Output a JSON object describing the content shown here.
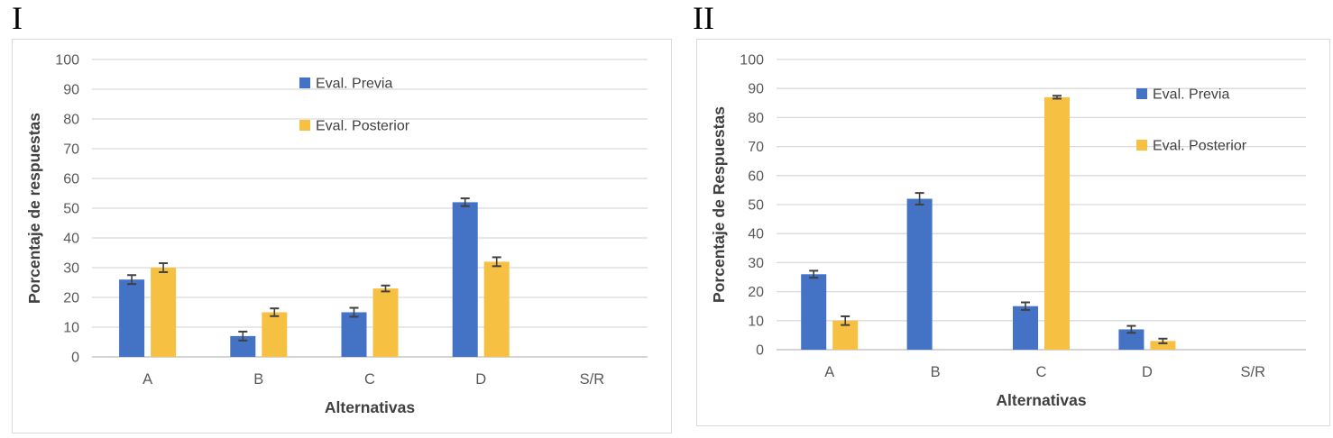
{
  "figures": [
    {
      "label": "I"
    },
    {
      "label": "II"
    }
  ],
  "colors": {
    "series_previa": "#4472C4",
    "series_posterior": "#F6C143",
    "gridline": "#D9D9D9",
    "axis_line": "#C6C6C6",
    "tick_text": "#595959",
    "category_text": "#595959",
    "axis_title_text": "#404040",
    "legend_text": "#404040",
    "error_bar": "#404040",
    "panel_border": "#D9D9D9",
    "figure_label_text": "#000000",
    "background": "#FFFFFF"
  },
  "chart_data": [
    {
      "type": "bar",
      "title": "",
      "categories": [
        "A",
        "B",
        "C",
        "D",
        "S/R"
      ],
      "series": [
        {
          "name": "Eval. Previa",
          "color": "#4472C4",
          "values": [
            26,
            7,
            15,
            52,
            0
          ],
          "errors": [
            1.5,
            1.5,
            1.5,
            1.3,
            0
          ]
        },
        {
          "name": "Eval. Posterior",
          "color": "#F6C143",
          "values": [
            30,
            15,
            23,
            32,
            0
          ],
          "errors": [
            1.5,
            1.3,
            1.0,
            1.5,
            0
          ]
        }
      ],
      "xlabel": "Alternativas",
      "ylabel": "Porcentaje de respuestas",
      "ylim": [
        0,
        100
      ],
      "ytick_step": 10,
      "grid": true,
      "legend_position": "inside-top-center"
    },
    {
      "type": "bar",
      "title": "",
      "categories": [
        "A",
        "B",
        "C",
        "D",
        "S/R"
      ],
      "series": [
        {
          "name": "Eval. Previa",
          "color": "#4472C4",
          "values": [
            26,
            52,
            15,
            7,
            0
          ],
          "errors": [
            1.2,
            2.0,
            1.3,
            1.2,
            0
          ]
        },
        {
          "name": "Eval. Posterior",
          "color": "#F6C143",
          "values": [
            10,
            0,
            87,
            3,
            0
          ],
          "errors": [
            1.5,
            0,
            0.5,
            0.8,
            0
          ]
        }
      ],
      "xlabel": "Alternativas",
      "ylabel": "Porcentaje de Respuestas",
      "ylim": [
        0,
        100
      ],
      "ytick_step": 10,
      "grid": true,
      "legend_position": "inside-top-right"
    }
  ]
}
